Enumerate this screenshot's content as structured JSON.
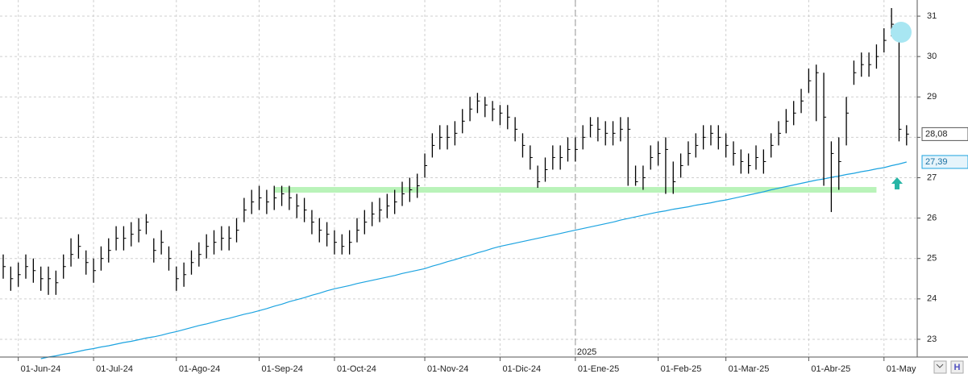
{
  "chart_data": {
    "type": "ohlc",
    "categories": [
      null,
      null,
      "01-Jun-24",
      null,
      null,
      null,
      null,
      null,
      null,
      null,
      null,
      null,
      "01-Jul-24",
      null,
      null,
      null,
      null,
      null,
      null,
      null,
      null,
      null,
      null,
      "01-Ago-24",
      null,
      null,
      null,
      null,
      null,
      null,
      null,
      null,
      null,
      null,
      "01-Sep-24",
      null,
      null,
      null,
      null,
      null,
      null,
      null,
      null,
      null,
      "01-Oct-24",
      null,
      null,
      null,
      null,
      null,
      null,
      null,
      null,
      null,
      null,
      null,
      "01-Nov-24",
      null,
      null,
      null,
      null,
      null,
      null,
      null,
      null,
      null,
      "01-Dic-24",
      null,
      null,
      null,
      null,
      null,
      null,
      null,
      null,
      null,
      "01-Ene-25",
      null,
      null,
      null,
      null,
      null,
      null,
      null,
      null,
      null,
      null,
      "01-Feb-25",
      null,
      null,
      null,
      null,
      null,
      null,
      null,
      null,
      "01-Mar-25",
      null,
      null,
      null,
      null,
      null,
      null,
      null,
      null,
      null,
      null,
      "01-Abr-25",
      null,
      null,
      null,
      null,
      null,
      null,
      null,
      null,
      null,
      "01-May",
      null,
      null,
      null
    ],
    "high": [
      25.1,
      24.8,
      24.9,
      25.1,
      25.0,
      24.8,
      24.8,
      24.7,
      25.1,
      25.5,
      25.6,
      25.2,
      25.0,
      25.3,
      25.5,
      25.8,
      25.8,
      25.9,
      26.0,
      26.1,
      25.5,
      25.7,
      25.3,
      24.8,
      24.9,
      25.2,
      25.4,
      25.6,
      25.7,
      25.8,
      25.8,
      26.0,
      26.5,
      26.7,
      26.8,
      26.7,
      26.8,
      26.8,
      26.8,
      26.6,
      26.5,
      26.2,
      26.0,
      25.9,
      25.7,
      25.6,
      25.7,
      26.0,
      26.2,
      26.4,
      26.5,
      26.6,
      26.7,
      26.9,
      27.0,
      27.1,
      27.6,
      28.1,
      28.3,
      28.3,
      28.4,
      28.7,
      29.0,
      29.1,
      29.0,
      28.9,
      28.8,
      28.8,
      28.5,
      28.1,
      27.8,
      27.3,
      27.5,
      27.8,
      27.8,
      28.0,
      28.0,
      28.3,
      28.5,
      28.5,
      28.4,
      28.4,
      28.5,
      28.5,
      27.3,
      27.3,
      27.8,
      27.9,
      28.0,
      27.4,
      27.6,
      27.9,
      28.1,
      28.3,
      28.3,
      28.3,
      28.1,
      27.9,
      27.7,
      27.6,
      27.8,
      27.7,
      28.1,
      28.4,
      28.7,
      28.9,
      29.2,
      29.7,
      29.8,
      29.6,
      27.9,
      28.0,
      29.0,
      29.9,
      30.1,
      30.1,
      30.3,
      30.7,
      31.2,
      30.6,
      28.3
    ],
    "low": [
      24.5,
      24.2,
      24.3,
      24.5,
      24.4,
      24.2,
      24.1,
      24.1,
      24.5,
      24.8,
      25.0,
      24.6,
      24.4,
      24.7,
      24.9,
      25.2,
      25.2,
      25.3,
      25.4,
      25.6,
      24.9,
      25.1,
      24.7,
      24.2,
      24.3,
      24.6,
      24.8,
      25.0,
      25.1,
      25.2,
      25.2,
      25.4,
      25.9,
      26.1,
      26.2,
      26.1,
      26.2,
      26.3,
      26.2,
      26.0,
      25.9,
      25.6,
      25.4,
      25.3,
      25.1,
      25.1,
      25.1,
      25.4,
      25.6,
      25.8,
      25.9,
      26.0,
      26.1,
      26.3,
      26.4,
      26.5,
      27.0,
      27.5,
      27.7,
      27.7,
      27.8,
      28.1,
      28.4,
      28.6,
      28.5,
      28.4,
      28.3,
      28.2,
      27.9,
      27.5,
      27.2,
      26.75,
      26.9,
      27.2,
      27.2,
      27.4,
      27.4,
      27.7,
      28.0,
      27.9,
      27.8,
      27.8,
      27.9,
      26.8,
      26.8,
      26.7,
      27.2,
      27.3,
      26.6,
      26.6,
      27.0,
      27.3,
      27.5,
      27.7,
      27.8,
      27.7,
      27.5,
      27.3,
      27.1,
      27.1,
      27.2,
      27.1,
      27.5,
      27.8,
      28.1,
      28.3,
      28.6,
      29.1,
      28.4,
      26.8,
      26.15,
      26.7,
      27.8,
      29.3,
      29.5,
      29.5,
      29.7,
      30.1,
      30.5,
      27.9,
      27.8
    ],
    "close": [
      24.8,
      24.5,
      24.6,
      24.8,
      24.7,
      24.5,
      24.5,
      24.4,
      24.8,
      25.1,
      25.3,
      24.9,
      24.7,
      25.0,
      25.2,
      25.5,
      25.5,
      25.6,
      25.7,
      25.9,
      25.2,
      25.4,
      25.0,
      24.5,
      24.6,
      24.9,
      25.1,
      25.3,
      25.4,
      25.5,
      25.5,
      25.7,
      26.2,
      26.4,
      26.5,
      26.4,
      26.5,
      26.6,
      26.5,
      26.3,
      26.2,
      25.9,
      25.7,
      25.6,
      25.4,
      25.3,
      25.4,
      25.7,
      25.9,
      26.1,
      26.2,
      26.3,
      26.4,
      26.6,
      26.7,
      26.8,
      27.3,
      27.8,
      28.0,
      28.0,
      28.1,
      28.4,
      28.7,
      28.9,
      28.8,
      28.7,
      28.6,
      28.5,
      28.2,
      27.8,
      27.5,
      26.9,
      27.2,
      27.5,
      27.5,
      27.7,
      27.7,
      28.0,
      28.3,
      28.2,
      28.1,
      28.1,
      28.2,
      28.2,
      26.9,
      27.0,
      27.5,
      27.6,
      27.7,
      26.9,
      27.3,
      27.6,
      27.8,
      28.0,
      28.1,
      28.0,
      27.8,
      27.6,
      27.4,
      27.3,
      27.5,
      27.4,
      27.8,
      28.1,
      28.4,
      28.6,
      28.9,
      29.4,
      29.6,
      28.5,
      27.6,
      27.4,
      28.6,
      29.6,
      29.8,
      29.8,
      30.0,
      30.4,
      30.8,
      28.2,
      28.08
    ],
    "color": "#000000",
    "moving_average": {
      "color": "#1ca3e0",
      "values": [
        null,
        null,
        null,
        null,
        null,
        22.52,
        22.56,
        22.59,
        22.63,
        22.66,
        22.7,
        22.74,
        22.77,
        22.81,
        22.84,
        22.88,
        22.92,
        22.95,
        22.99,
        23.03,
        23.06,
        23.1,
        23.15,
        23.19,
        23.24,
        23.29,
        23.34,
        23.38,
        23.43,
        23.48,
        23.52,
        23.57,
        23.62,
        23.66,
        23.71,
        23.76,
        23.82,
        23.87,
        23.93,
        23.98,
        24.03,
        24.09,
        24.14,
        24.2,
        24.25,
        24.29,
        24.33,
        24.38,
        24.42,
        24.46,
        24.5,
        24.54,
        24.58,
        24.63,
        24.67,
        24.71,
        24.75,
        24.81,
        24.86,
        24.92,
        24.97,
        25.03,
        25.08,
        25.14,
        25.19,
        25.25,
        25.3,
        25.34,
        25.38,
        25.42,
        25.46,
        25.5,
        25.54,
        25.58,
        25.62,
        25.66,
        25.7,
        25.74,
        25.78,
        25.82,
        25.86,
        25.9,
        25.95,
        25.99,
        26.03,
        26.07,
        26.11,
        26.15,
        26.18,
        26.22,
        26.25,
        26.28,
        26.32,
        26.35,
        26.38,
        26.42,
        26.45,
        26.49,
        26.53,
        26.57,
        26.61,
        26.65,
        26.7,
        26.74,
        26.78,
        26.82,
        26.86,
        26.9,
        26.94,
        26.97,
        27.01,
        27.04,
        27.08,
        27.11,
        27.15,
        27.18,
        27.22,
        27.25,
        27.3,
        27.34,
        27.39
      ]
    },
    "support": {
      "value": 26.7,
      "color": "#b9f3b9"
    },
    "price_labels": [
      {
        "value": 28.08,
        "label": "28,08"
      },
      {
        "value": 27.39,
        "label": "27,39"
      }
    ],
    "year_label": "2025",
    "ylim": [
      22.56,
      31.4
    ],
    "yticks": [
      23,
      24,
      25,
      26,
      27,
      28,
      29,
      30,
      31
    ],
    "grid": true
  }
}
